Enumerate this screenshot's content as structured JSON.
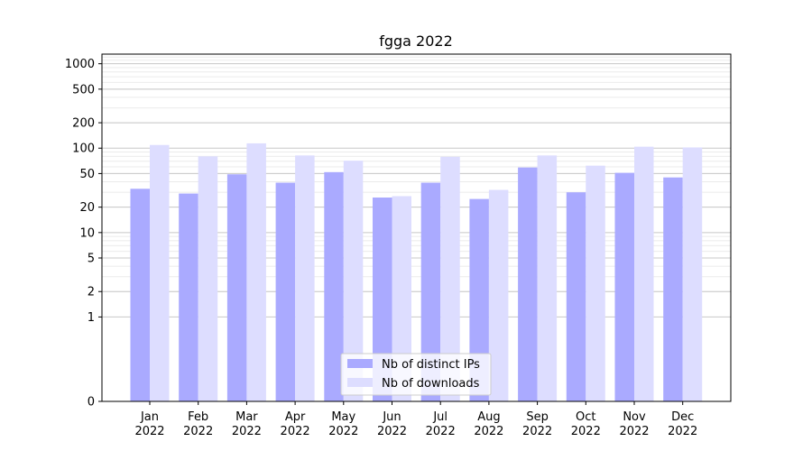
{
  "chart_data": {
    "type": "bar",
    "title": "fgga 2022",
    "xlabel": "",
    "ylabel": "",
    "yscale": "symlog",
    "ylim": [
      0,
      1300
    ],
    "yticks": [
      0,
      1,
      2,
      5,
      10,
      20,
      50,
      100,
      200,
      500,
      1000
    ],
    "grid": "horizontal",
    "legend_position": "bottom-center",
    "categories": [
      [
        "Jan",
        "2022"
      ],
      [
        "Feb",
        "2022"
      ],
      [
        "Mar",
        "2022"
      ],
      [
        "Apr",
        "2022"
      ],
      [
        "May",
        "2022"
      ],
      [
        "Jun",
        "2022"
      ],
      [
        "Jul",
        "2022"
      ],
      [
        "Aug",
        "2022"
      ],
      [
        "Sep",
        "2022"
      ],
      [
        "Oct",
        "2022"
      ],
      [
        "Nov",
        "2022"
      ],
      [
        "Dec",
        "2022"
      ]
    ],
    "series": [
      {
        "name": "Nb of distinct IPs",
        "color": "#aaaaff",
        "values": [
          33,
          29,
          49,
          39,
          52,
          26,
          39,
          25,
          59,
          30,
          51,
          45
        ]
      },
      {
        "name": "Nb of downloads",
        "color": "#ddddff",
        "values": [
          109,
          80,
          114,
          82,
          71,
          27,
          79,
          32,
          82,
          62,
          104,
          102
        ]
      }
    ]
  }
}
